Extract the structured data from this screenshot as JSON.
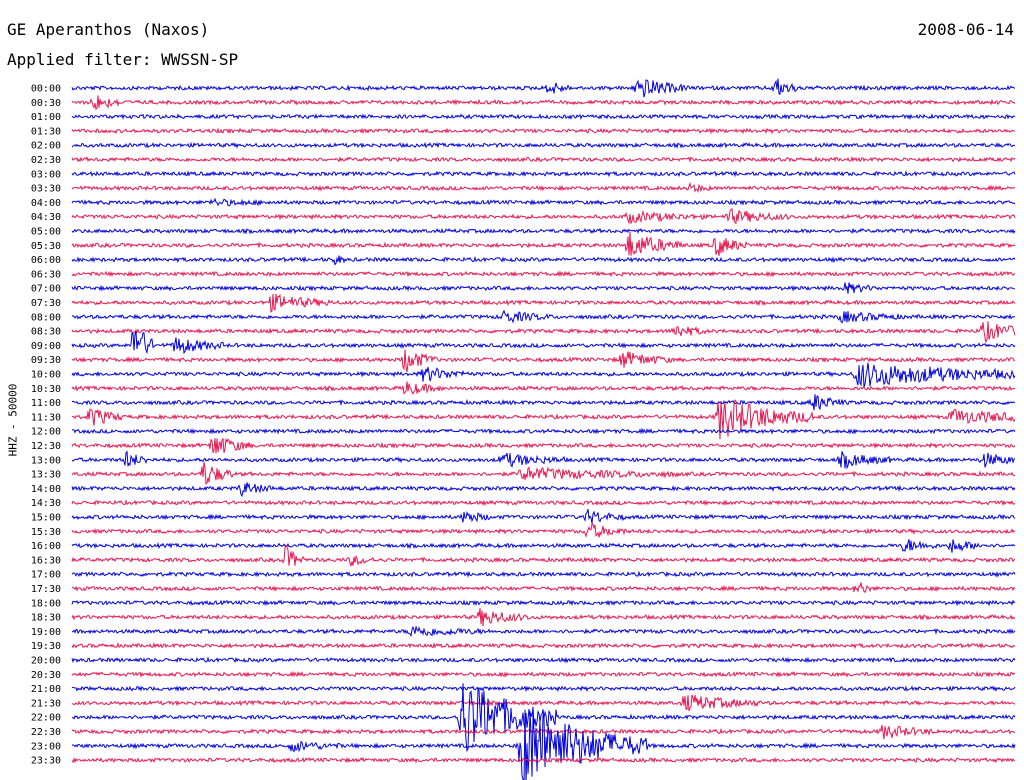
{
  "header": {
    "title": "GE Aperanthos (Naxos)",
    "date": "2008-06-14",
    "filter": "Applied filter: WWSSN-SP"
  },
  "chart_data": {
    "type": "line",
    "title": "GE Aperanthos (Naxos)",
    "ylabel": "HHZ - 50000",
    "trace_colors": [
      "#0000e0",
      "#e8164f"
    ],
    "rows": [
      "00:00",
      "00:30",
      "01:00",
      "01:30",
      "02:00",
      "02:30",
      "03:00",
      "03:30",
      "04:00",
      "04:30",
      "05:00",
      "05:30",
      "06:00",
      "06:30",
      "07:00",
      "07:30",
      "08:00",
      "08:30",
      "09:00",
      "09:30",
      "10:00",
      "10:30",
      "11:00",
      "11:30",
      "12:00",
      "12:30",
      "13:00",
      "13:30",
      "14:00",
      "14:30",
      "15:00",
      "15:30",
      "16:00",
      "16:30",
      "17:00",
      "17:30",
      "18:00",
      "18:30",
      "19:00",
      "19:30",
      "20:00",
      "20:30",
      "21:00",
      "21:30",
      "22:00",
      "22:30",
      "23:00",
      "23:30"
    ],
    "minutes_per_row": 30,
    "events": [
      {
        "row": 0,
        "minute": 15.2,
        "amp": 0.9,
        "dur": 0.3
      },
      {
        "row": 0,
        "minute": 18.0,
        "amp": 1.3,
        "dur": 0.8
      },
      {
        "row": 0,
        "minute": 22.4,
        "amp": 1.1,
        "dur": 0.4
      },
      {
        "row": 1,
        "minute": 0.7,
        "amp": 1.0,
        "dur": 0.5
      },
      {
        "row": 7,
        "minute": 19.7,
        "amp": 0.5,
        "dur": 0.3
      },
      {
        "row": 8,
        "minute": 4.5,
        "amp": 0.3,
        "dur": 1.0
      },
      {
        "row": 9,
        "minute": 17.7,
        "amp": 0.6,
        "dur": 1.2
      },
      {
        "row": 9,
        "minute": 20.9,
        "amp": 0.8,
        "dur": 1.0
      },
      {
        "row": 11,
        "minute": 17.7,
        "amp": 1.6,
        "dur": 0.9
      },
      {
        "row": 11,
        "minute": 20.5,
        "amp": 1.3,
        "dur": 0.5
      },
      {
        "row": 12,
        "minute": 8.4,
        "amp": 0.6,
        "dur": 0.1
      },
      {
        "row": 14,
        "minute": 24.6,
        "amp": 0.6,
        "dur": 0.5
      },
      {
        "row": 15,
        "minute": 6.3,
        "amp": 1.0,
        "dur": 1.0
      },
      {
        "row": 16,
        "minute": 13.7,
        "amp": 0.7,
        "dur": 0.8
      },
      {
        "row": 16,
        "minute": 24.5,
        "amp": 0.6,
        "dur": 1.0
      },
      {
        "row": 17,
        "minute": 19.2,
        "amp": 0.8,
        "dur": 0.5
      },
      {
        "row": 17,
        "minute": 29.0,
        "amp": 1.2,
        "dur": 0.8
      },
      {
        "row": 18,
        "minute": 2.0,
        "amp": 3.5,
        "dur": 0.3
      },
      {
        "row": 18,
        "minute": 3.3,
        "amp": 1.0,
        "dur": 0.8
      },
      {
        "row": 19,
        "minute": 10.6,
        "amp": 1.5,
        "dur": 0.5
      },
      {
        "row": 19,
        "minute": 17.5,
        "amp": 1.0,
        "dur": 0.8
      },
      {
        "row": 20,
        "minute": 11.2,
        "amp": 0.9,
        "dur": 0.7
      },
      {
        "row": 20,
        "minute": 25.0,
        "amp": 1.5,
        "dur": 3.0
      },
      {
        "row": 21,
        "minute": 10.6,
        "amp": 0.8,
        "dur": 0.6
      },
      {
        "row": 22,
        "minute": 23.6,
        "amp": 1.0,
        "dur": 0.5
      },
      {
        "row": 23,
        "minute": 0.6,
        "amp": 1.2,
        "dur": 0.5
      },
      {
        "row": 23,
        "minute": 20.6,
        "amp": 2.6,
        "dur": 1.5
      },
      {
        "row": 23,
        "minute": 28.0,
        "amp": 0.8,
        "dur": 1.8
      },
      {
        "row": 25,
        "minute": 4.5,
        "amp": 1.4,
        "dur": 0.6
      },
      {
        "row": 26,
        "minute": 1.7,
        "amp": 1.0,
        "dur": 0.4
      },
      {
        "row": 26,
        "minute": 13.7,
        "amp": 0.8,
        "dur": 1.0
      },
      {
        "row": 26,
        "minute": 24.5,
        "amp": 0.9,
        "dur": 0.8
      },
      {
        "row": 26,
        "minute": 29.0,
        "amp": 0.8,
        "dur": 0.6
      },
      {
        "row": 27,
        "minute": 4.2,
        "amp": 1.5,
        "dur": 0.5
      },
      {
        "row": 27,
        "minute": 14.3,
        "amp": 0.7,
        "dur": 2.5
      },
      {
        "row": 28,
        "minute": 5.4,
        "amp": 0.8,
        "dur": 0.5
      },
      {
        "row": 30,
        "minute": 12.5,
        "amp": 0.8,
        "dur": 0.4
      },
      {
        "row": 30,
        "minute": 16.4,
        "amp": 0.8,
        "dur": 0.6
      },
      {
        "row": 31,
        "minute": 16.4,
        "amp": 1.0,
        "dur": 0.6
      },
      {
        "row": 32,
        "minute": 26.5,
        "amp": 0.8,
        "dur": 0.5
      },
      {
        "row": 32,
        "minute": 28.0,
        "amp": 0.8,
        "dur": 0.5
      },
      {
        "row": 33,
        "minute": 6.8,
        "amp": 1.6,
        "dur": 0.3
      },
      {
        "row": 33,
        "minute": 8.9,
        "amp": 0.6,
        "dur": 0.4
      },
      {
        "row": 35,
        "minute": 25.0,
        "amp": 1.0,
        "dur": 0.2
      },
      {
        "row": 37,
        "minute": 13.0,
        "amp": 1.0,
        "dur": 0.8
      },
      {
        "row": 38,
        "minute": 10.8,
        "amp": 0.6,
        "dur": 1.2
      },
      {
        "row": 43,
        "minute": 19.5,
        "amp": 1.0,
        "dur": 1.2
      },
      {
        "row": 44,
        "minute": 12.4,
        "amp": 5.0,
        "dur": 1.5
      },
      {
        "row": 45,
        "minute": 25.8,
        "amp": 0.8,
        "dur": 0.8
      },
      {
        "row": 46,
        "minute": 7.0,
        "amp": 0.6,
        "dur": 0.8
      },
      {
        "row": 46,
        "minute": 14.3,
        "amp": 5.5,
        "dur": 2.0
      }
    ]
  }
}
